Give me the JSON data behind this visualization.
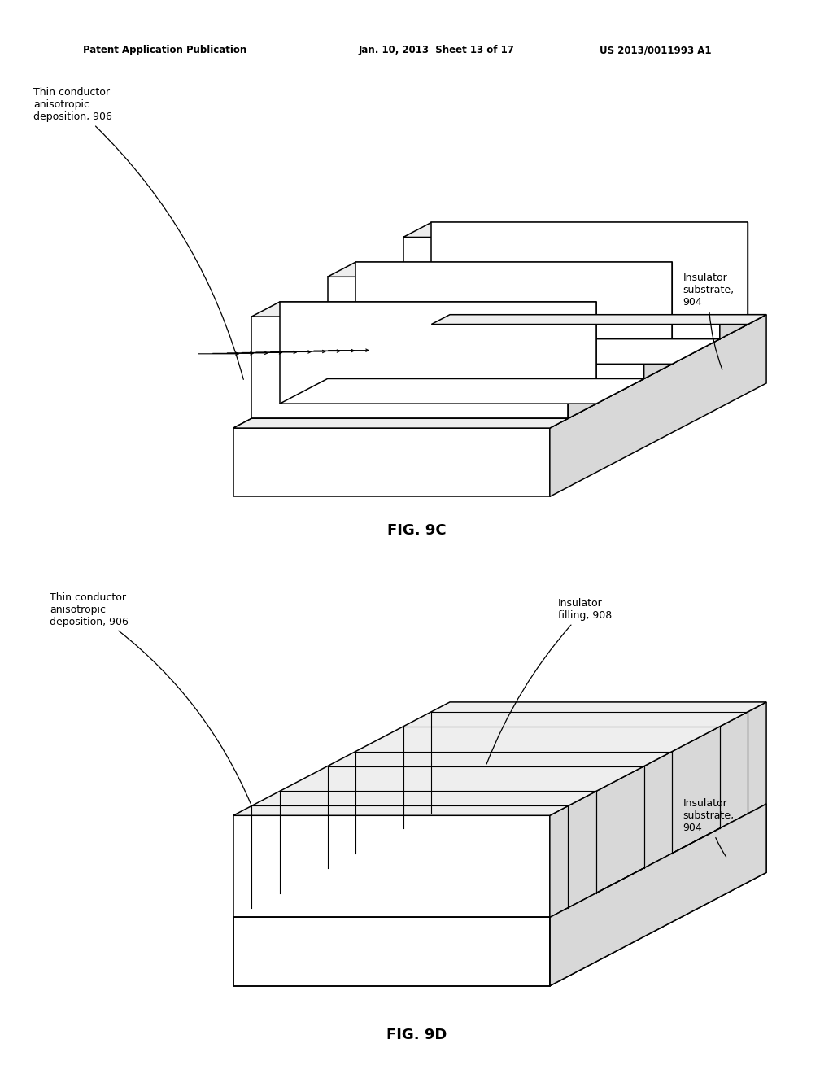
{
  "bg_color": "#ffffff",
  "line_color": "#000000",
  "header_left": "Patent Application Publication",
  "header_mid": "Jan. 10, 2013  Sheet 13 of 17",
  "header_right": "US 2013/0011993 A1",
  "fig9c_label": "FIG. 9C",
  "fig9d_label": "FIG. 9D",
  "n_fins": 3,
  "n_grooves": 2
}
